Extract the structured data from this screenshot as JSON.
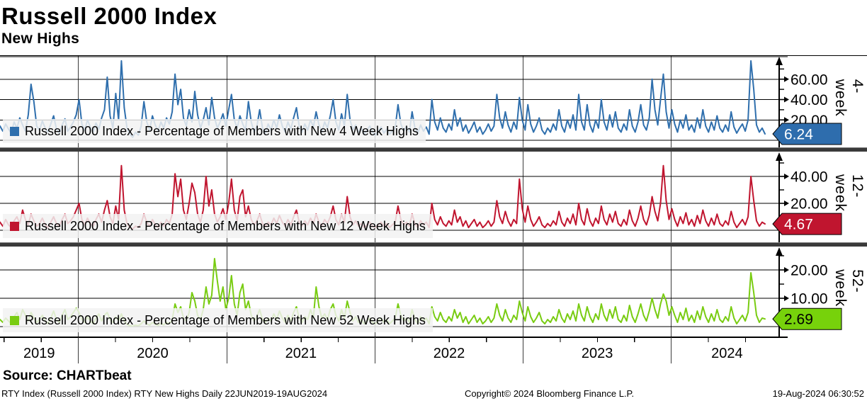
{
  "header": {
    "title": "Russell 2000 Index",
    "subtitle": "New Highs"
  },
  "source_label": "Source: CHARTbeat",
  "footer": {
    "left": "RTY Index (Russell 2000 Index) RTY New Highs  Daily 22JUN2019-19AUG2024",
    "center": "Copyright© 2024 Bloomberg Finance L.P.",
    "right": "19-Aug-2024 06:30:52"
  },
  "chart_data": {
    "type": "line",
    "title": "Russell 2000 Index",
    "subtitle": "New Highs",
    "x_range": [
      "22JUN2019",
      "19AUG2024"
    ],
    "x_axis": {
      "years": [
        "2019",
        "2020",
        "2021",
        "2022",
        "2023",
        "2024"
      ],
      "year_start_fracs": [
        0.1024,
        0.2966,
        0.4902,
        0.6838,
        0.8775
      ],
      "grid": true
    },
    "panels": [
      {
        "label": "4-week",
        "legend": "Russell 2000 Index - Percentage of Members with New 4 Week Highs",
        "color": "#2f6fad",
        "faded_color": "#a9c3dd",
        "ylim": [
          0,
          82
        ],
        "ticks_major": [
          {
            "v": 60,
            "label": "60.00"
          },
          {
            "v": 40,
            "label": "40.00"
          },
          {
            "v": 20,
            "label": "20.00"
          }
        ],
        "ticks_minor": [
          70,
          50,
          30,
          10
        ],
        "last_value": 6.24,
        "badge": {
          "text": "6.24",
          "bg": "#2e6dad",
          "fg": "#ffffff"
        },
        "values": [
          14,
          9,
          16,
          11,
          7,
          18,
          12,
          22,
          15,
          9,
          25,
          55,
          38,
          14,
          10,
          19,
          12,
          8,
          16,
          24,
          11,
          7,
          15,
          21,
          9,
          13,
          18,
          25,
          40,
          16,
          10,
          20,
          13,
          8,
          17,
          11,
          22,
          30,
          62,
          24,
          12,
          46,
          20,
          78,
          32,
          12,
          6,
          3,
          8,
          5,
          14,
          38,
          18,
          10,
          24,
          15,
          9,
          18,
          12,
          22,
          16,
          28,
          65,
          35,
          50,
          22,
          14,
          30,
          18,
          48,
          25,
          12,
          20,
          32,
          15,
          42,
          22,
          12,
          18,
          26,
          14,
          30,
          45,
          20,
          12,
          24,
          16,
          10,
          38,
          18,
          8,
          14,
          30,
          12,
          7,
          16,
          10,
          20,
          12,
          25,
          14,
          8,
          18,
          11,
          22,
          32,
          14,
          8,
          16,
          10,
          20,
          13,
          28,
          15,
          8,
          18,
          12,
          24,
          40,
          18,
          10,
          26,
          14,
          45,
          20,
          10,
          15,
          8,
          12,
          6,
          10,
          14,
          8,
          5,
          9,
          13,
          7,
          11,
          6,
          9,
          12,
          35,
          16,
          9,
          14,
          8,
          28,
          12,
          7,
          15,
          9,
          13,
          6,
          40,
          18,
          10,
          22,
          12,
          8,
          16,
          10,
          30,
          14,
          22,
          9,
          15,
          7,
          12,
          18,
          8,
          13,
          6,
          10,
          16,
          9,
          14,
          45,
          22,
          12,
          28,
          15,
          8,
          18,
          11,
          42,
          20,
          10,
          35,
          16,
          8,
          14,
          22,
          10,
          6,
          12,
          8,
          16,
          10,
          30,
          14,
          8,
          20,
          12,
          25,
          10,
          45,
          18,
          10,
          35,
          15,
          8,
          20,
          12,
          40,
          18,
          10,
          25,
          13,
          28,
          12,
          8,
          16,
          10,
          30,
          14,
          8,
          18,
          35,
          15,
          10,
          22,
          60,
          30,
          15,
          40,
          65,
          28,
          12,
          30,
          16,
          8,
          20,
          12,
          25,
          10,
          15,
          8,
          22,
          12,
          30,
          14,
          8,
          18,
          10,
          24,
          12,
          8,
          15,
          9,
          28,
          13,
          7,
          12,
          16,
          9,
          20,
          78,
          50,
          15,
          8,
          12,
          6.24
        ]
      },
      {
        "label": "12-week",
        "legend": "Russell 2000 Index - Percentage of Members with New 12 Week Highs",
        "color": "#c0152f",
        "faded_color": "#dfa3ae",
        "ylim": [
          0,
          57
        ],
        "ticks_major": [
          {
            "v": 40,
            "label": "40.00"
          },
          {
            "v": 20,
            "label": "20.00"
          }
        ],
        "ticks_minor": [
          50,
          30,
          10
        ],
        "last_value": 4.67,
        "badge": {
          "text": "4.67",
          "bg": "#c0152f",
          "fg": "#ffffff"
        },
        "values": [
          6,
          3,
          8,
          4,
          2,
          7,
          10,
          5,
          15,
          8,
          4,
          12,
          7,
          3,
          5,
          9,
          4,
          2,
          6,
          10,
          5,
          3,
          8,
          12,
          5,
          7,
          10,
          15,
          20,
          8,
          4,
          9,
          5,
          3,
          8,
          12,
          6,
          15,
          22,
          10,
          5,
          18,
          8,
          48,
          15,
          5,
          2,
          1,
          3,
          2,
          5,
          12,
          6,
          3,
          8,
          4,
          2,
          6,
          3,
          8,
          5,
          12,
          42,
          25,
          38,
          15,
          8,
          20,
          35,
          28,
          12,
          6,
          15,
          40,
          18,
          30,
          12,
          6,
          10,
          16,
          8,
          20,
          38,
          15,
          7,
          25,
          30,
          10,
          18,
          8,
          4,
          7,
          12,
          5,
          3,
          6,
          4,
          9,
          5,
          11,
          6,
          3,
          8,
          4,
          10,
          15,
          6,
          3,
          7,
          4,
          9,
          5,
          12,
          6,
          3,
          8,
          5,
          10,
          18,
          8,
          4,
          12,
          6,
          25,
          10,
          4,
          7,
          3,
          5,
          2,
          4,
          6,
          3,
          2,
          4,
          6,
          3,
          5,
          2,
          4,
          6,
          18,
          8,
          4,
          6,
          3,
          12,
          5,
          2,
          7,
          4,
          6,
          2,
          20,
          8,
          4,
          10,
          5,
          3,
          7,
          4,
          15,
          6,
          10,
          3,
          7,
          2,
          5,
          8,
          3,
          6,
          2,
          4,
          7,
          3,
          6,
          22,
          10,
          5,
          14,
          7,
          3,
          8,
          5,
          38,
          16,
          6,
          18,
          8,
          3,
          6,
          10,
          4,
          2,
          5,
          3,
          7,
          4,
          14,
          6,
          3,
          9,
          5,
          12,
          4,
          20,
          8,
          4,
          16,
          7,
          3,
          9,
          5,
          18,
          8,
          4,
          12,
          6,
          14,
          5,
          3,
          8,
          4,
          15,
          7,
          3,
          9,
          18,
          8,
          4,
          11,
          25,
          14,
          7,
          20,
          48,
          22,
          8,
          16,
          8,
          3,
          10,
          5,
          13,
          4,
          8,
          3,
          11,
          5,
          15,
          7,
          3,
          9,
          4,
          12,
          5,
          3,
          7,
          4,
          14,
          6,
          2,
          5,
          8,
          4,
          10,
          40,
          22,
          7,
          3,
          6,
          4.67
        ]
      },
      {
        "label": "52-week",
        "legend": "Russell 2000 Index - Percentage of Members with New 52 Week Highs",
        "color": "#79cc12",
        "faded_color": "#c8e79a",
        "ylim": [
          0,
          27
        ],
        "ticks_major": [
          {
            "v": 20,
            "label": "20.00"
          },
          {
            "v": 10,
            "label": "10.00"
          }
        ],
        "ticks_minor": [
          25,
          15,
          5
        ],
        "last_value": 2.69,
        "badge": {
          "text": "2.69",
          "bg": "#77d20b",
          "fg": "#000000"
        },
        "values": [
          2.5,
          1.5,
          3,
          2,
          1,
          3.5,
          5,
          2.5,
          6,
          4,
          2,
          5,
          3,
          1.5,
          2.5,
          4,
          2,
          1,
          3,
          5.5,
          2.5,
          1.5,
          4,
          6,
          2.5,
          3.5,
          5,
          6.5,
          5,
          2.5,
          1.5,
          3.5,
          2,
          1,
          3,
          4.5,
          2,
          4,
          5,
          2.5,
          1.5,
          3.5,
          2,
          4.5,
          2,
          0.8,
          0.3,
          0.2,
          0.5,
          0.3,
          1,
          2,
          1,
          0.5,
          1.5,
          0.8,
          0.4,
          1.2,
          0.6,
          1.5,
          1,
          2.5,
          8,
          5,
          7,
          3,
          2,
          5,
          12,
          9,
          4,
          2.5,
          6,
          14,
          8,
          11,
          24,
          16,
          9,
          14,
          6,
          10,
          18,
          8,
          4,
          12,
          15,
          6,
          9,
          4,
          2,
          3.5,
          6,
          2.5,
          1.5,
          3,
          2,
          4.5,
          2.5,
          5.5,
          3,
          1.5,
          4,
          2,
          5,
          7,
          3,
          1.5,
          3.5,
          2.5,
          6,
          3,
          14,
          7,
          3,
          4.5,
          2.5,
          6,
          8,
          4,
          2,
          6,
          3,
          9,
          5,
          2,
          3.5,
          1.5,
          2.5,
          1,
          2,
          3,
          1.5,
          1,
          2,
          3,
          1.5,
          2.5,
          1,
          2,
          3,
          8,
          4,
          2,
          3,
          1.5,
          6,
          2.5,
          1,
          3.5,
          2,
          3,
          1,
          7,
          3.5,
          2,
          5,
          2.5,
          1.5,
          3.5,
          2,
          6,
          3,
          5,
          1.5,
          3.5,
          1,
          2.5,
          4,
          1.5,
          3,
          1,
          2,
          3.5,
          1.5,
          3,
          8,
          4,
          2,
          6,
          3,
          1.5,
          4,
          2.5,
          9,
          5,
          2,
          7,
          3.5,
          1.5,
          3,
          5,
          2,
          1,
          2.5,
          1.5,
          3.5,
          2,
          6,
          3,
          1.5,
          4.5,
          2.5,
          5.5,
          2,
          8,
          4,
          2,
          7,
          3.5,
          1.5,
          4.5,
          2.5,
          8,
          4,
          2,
          6,
          3,
          7,
          2.5,
          1.5,
          4,
          2,
          7.5,
          3.5,
          1.5,
          4.5,
          8,
          4,
          2,
          5.5,
          10,
          6,
          3,
          8,
          11.5,
          9,
          4,
          7,
          4,
          1.5,
          5,
          2.5,
          6.5,
          2,
          4,
          1.5,
          5.5,
          2.5,
          7,
          3.5,
          1.5,
          4.5,
          2,
          6,
          2.5,
          1.5,
          3.5,
          2,
          7,
          3,
          1,
          2.5,
          4,
          2,
          5,
          19,
          12,
          4,
          1.5,
          3,
          2.69
        ]
      }
    ]
  }
}
